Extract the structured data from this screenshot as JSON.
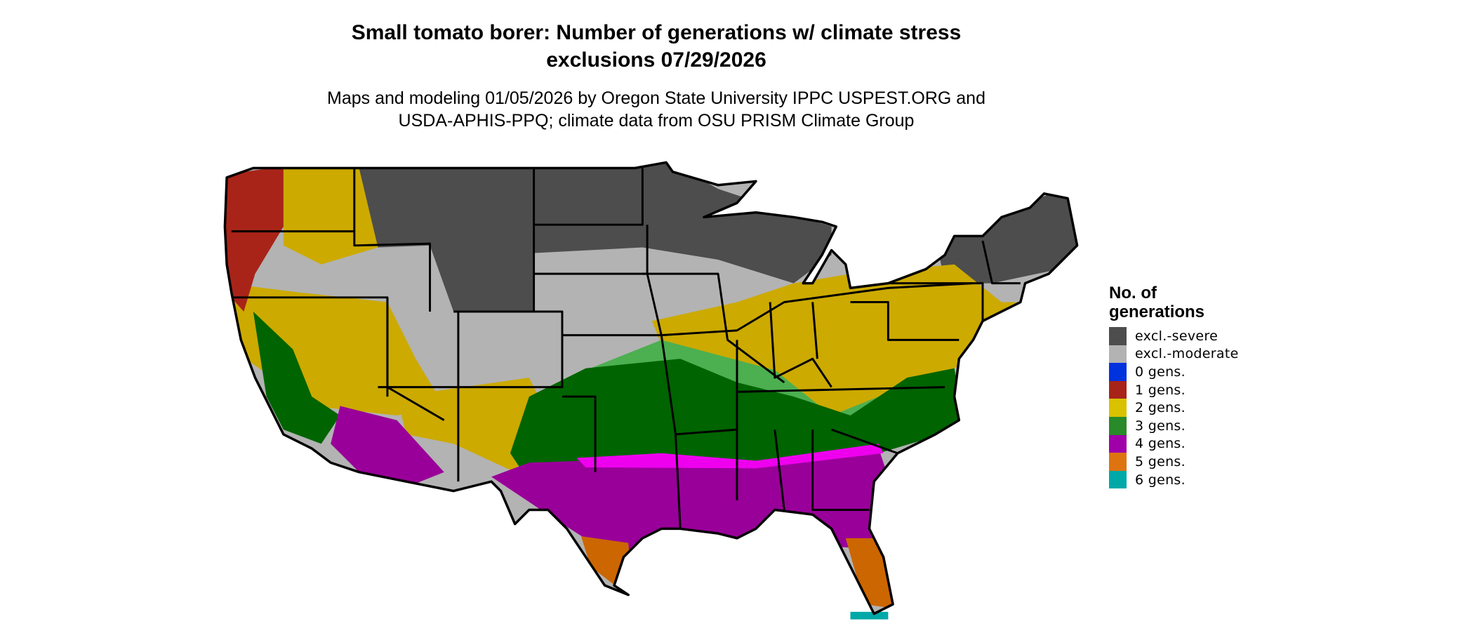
{
  "title": {
    "line1": "Small tomato borer: Number of generations w/ climate stress",
    "line2": "exclusions 07/29/2026"
  },
  "subtitle": {
    "line1": "Maps and modeling 01/05/2026 by Oregon State University IPPC USPEST.ORG and",
    "line2": "USDA-APHIS-PPQ; climate data from OSU PRISM Climate Group"
  },
  "legend": {
    "title_line1": "No. of",
    "title_line2": "generations",
    "items": [
      {
        "label": "excl.-severe",
        "color": "#4d4d4d"
      },
      {
        "label": "excl.-moderate",
        "color": "#b3b3b3"
      },
      {
        "label": "0 gens.",
        "color": "#0033dd"
      },
      {
        "label": "1 gens.",
        "color": "#a82418"
      },
      {
        "label": "2 gens.",
        "color": "#d9c200"
      },
      {
        "label": "3 gens.",
        "color": "#288a28"
      },
      {
        "label": "4 gens.",
        "color": "#a000a8"
      },
      {
        "label": "5 gens.",
        "color": "#dd7410"
      },
      {
        "label": "6 gens.",
        "color": "#00a8a8"
      }
    ]
  },
  "map_colors": {
    "excl_severe": "#4d4d4d",
    "excl_moderate": "#b3b3b3",
    "gen1": "#a82418",
    "gen2": "#ccaa00",
    "gen3": "#006400",
    "gen3_light": "#4caf50",
    "gen4": "#990099",
    "gen4_bright": "#ee00ee",
    "gen5": "#cc6600",
    "gen6": "#00a8a8"
  }
}
